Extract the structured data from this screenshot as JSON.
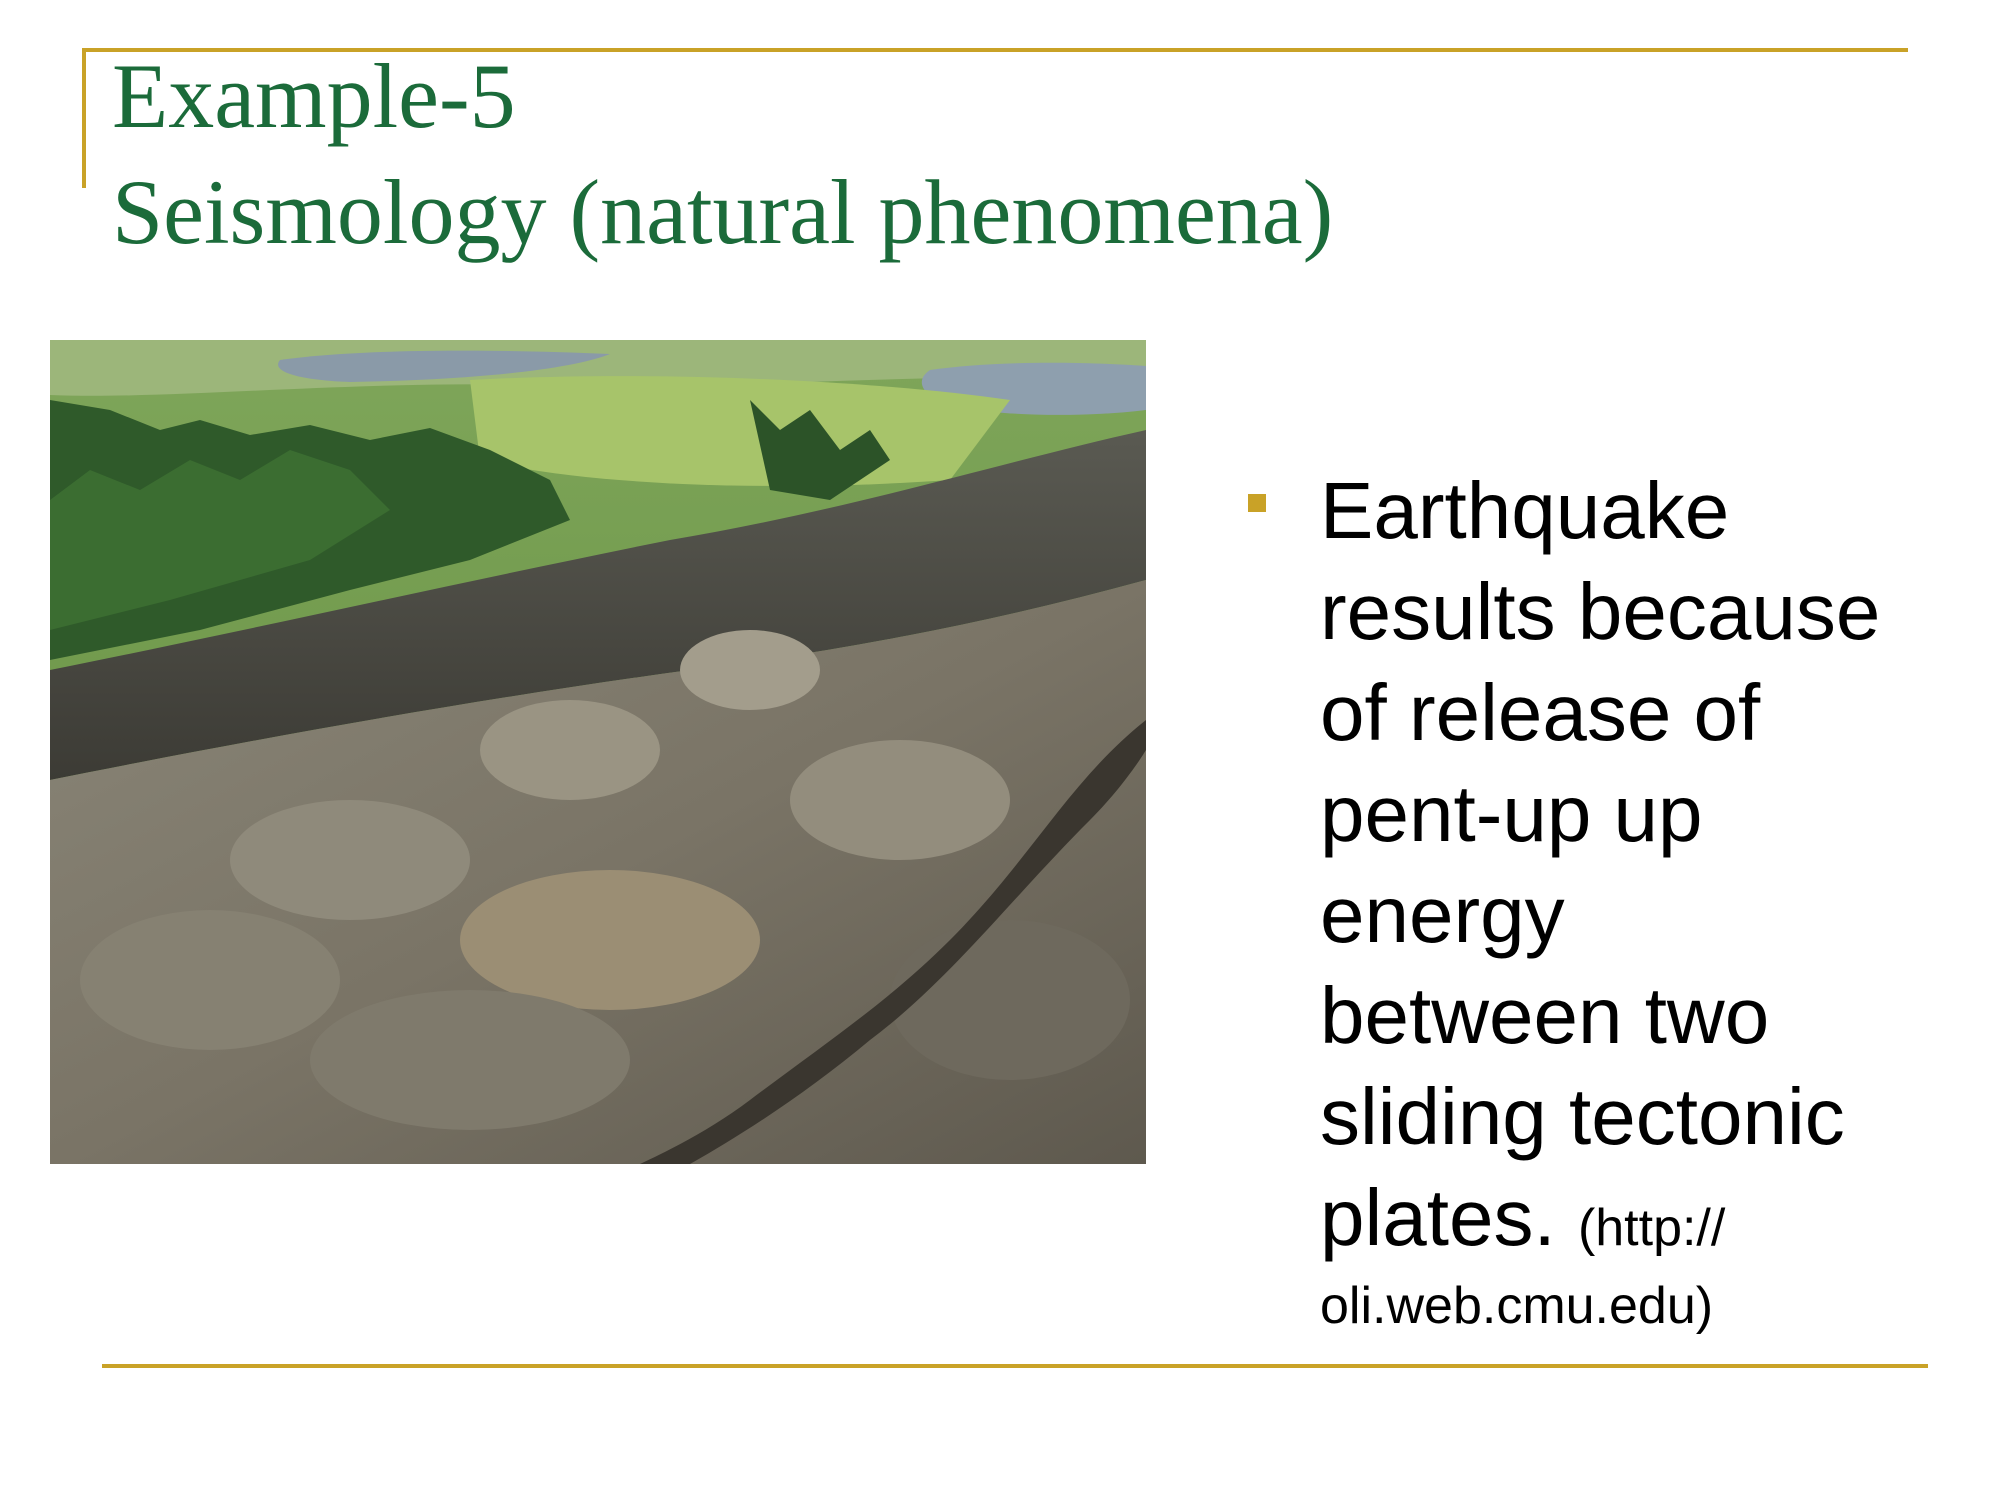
{
  "slide": {
    "title_line1": "Example-5",
    "title_line2": "Seismology (natural phenomena)",
    "bullet_lines": [
      "Earthquake",
      "results because",
      "of release of",
      "pent-up up",
      "energy",
      "between two",
      "sliding tectonic",
      "plates."
    ],
    "source_part1": "(http://",
    "source_part2": "oli.web.cmu.edu)"
  },
  "colors": {
    "title": "#1b6b3a",
    "accent": "#c9a227",
    "text": "#000000"
  },
  "icons": {
    "bullet": "square-bullet-icon"
  }
}
